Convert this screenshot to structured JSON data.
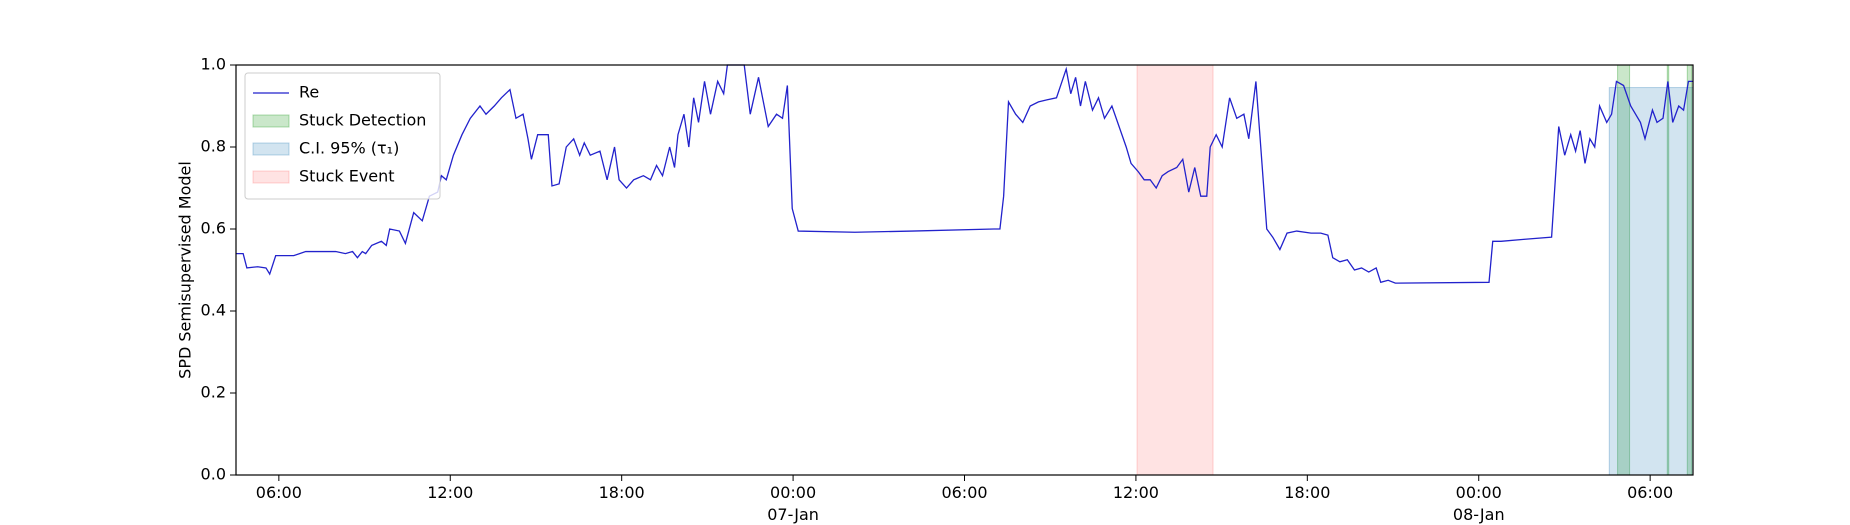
{
  "chart_data": {
    "type": "line",
    "ylabel": "SPD Semisupervised Model",
    "xlim": [
      4.5,
      55.5
    ],
    "xticks": [
      {
        "value": 6,
        "label": "06:00"
      },
      {
        "value": 12,
        "label": "12:00"
      },
      {
        "value": 18,
        "label": "18:00"
      },
      {
        "value": 24,
        "label": "00:00\n07-Jan\n1900"
      },
      {
        "value": 30,
        "label": "06:00"
      },
      {
        "value": 36,
        "label": "12:00"
      },
      {
        "value": 42,
        "label": "18:00"
      },
      {
        "value": 48,
        "label": "00:00\n08-Jan"
      },
      {
        "value": 54,
        "label": "06:00"
      }
    ],
    "ylim": [
      0,
      1
    ],
    "yticks": [
      {
        "value": 0,
        "label": "0.0"
      },
      0.2,
      0.4,
      0.6,
      0.8,
      {
        "value": 1,
        "label": "1.0"
      }
    ],
    "legend": "upper left",
    "x": [
      4.5,
      4.75,
      4.88,
      5.26,
      5.55,
      5.68,
      5.89,
      6.52,
      6.94,
      7.99,
      8.33,
      8.58,
      8.75,
      8.92,
      9.04,
      9.25,
      9.59,
      9.76,
      9.88,
      10.22,
      10.43,
      10.72,
      11.02,
      11.27,
      11.56,
      11.69,
      11.86,
      12.11,
      12.41,
      12.7,
      13.04,
      13.25,
      13.54,
      13.79,
      14.09,
      14.3,
      14.55,
      14.72,
      14.84,
      15.06,
      15.43,
      15.56,
      15.81,
      16.06,
      16.32,
      16.53,
      16.69,
      16.9,
      17.24,
      17.49,
      17.75,
      17.91,
      18.17,
      18.42,
      18.76,
      19.01,
      19.22,
      19.43,
      19.68,
      19.85,
      19.97,
      20.18,
      20.35,
      20.52,
      20.69,
      20.9,
      21.11,
      21.36,
      21.57,
      21.7,
      22.29,
      22.5,
      22.79,
      23.13,
      23.42,
      23.63,
      23.8,
      23.97,
      24.18,
      26.16,
      28.17,
      31.03,
      31.24,
      31.37,
      31.54,
      31.79,
      32.04,
      32.3,
      32.59,
      32.88,
      33.22,
      33.56,
      33.72,
      33.89,
      34.06,
      34.23,
      34.48,
      34.69,
      34.9,
      35.16,
      35.41,
      35.66,
      35.83,
      36.08,
      36.29,
      36.5,
      36.71,
      36.92,
      37.13,
      37.43,
      37.64,
      37.85,
      38.06,
      38.27,
      38.48,
      38.6,
      38.81,
      39.02,
      39.28,
      39.53,
      39.78,
      39.95,
      40.2,
      40.37,
      40.58,
      40.79,
      41.04,
      41.29,
      41.63,
      42.13,
      42.47,
      42.72,
      42.89,
      43.14,
      43.4,
      43.65,
      43.9,
      44.15,
      44.41,
      44.57,
      44.83,
      45.08,
      48.36,
      48.49,
      48.78,
      49.62,
      50.55,
      50.8,
      51.01,
      51.22,
      51.39,
      51.55,
      51.72,
      51.89,
      52.06,
      52.23,
      52.48,
      52.65,
      52.82,
      53.07,
      53.32,
      53.49,
      53.66,
      53.82,
      54.08,
      54.24,
      54.45,
      54.62,
      54.79,
      55.0,
      55.17,
      55.34,
      55.5
    ],
    "series": [
      {
        "name": "Re",
        "color": "#2222cc",
        "values": [
          0.54,
          0.54,
          0.505,
          0.508,
          0.505,
          0.49,
          0.535,
          0.535,
          0.545,
          0.545,
          0.54,
          0.545,
          0.53,
          0.545,
          0.54,
          0.56,
          0.57,
          0.56,
          0.6,
          0.595,
          0.565,
          0.64,
          0.62,
          0.68,
          0.69,
          0.73,
          0.72,
          0.78,
          0.83,
          0.87,
          0.9,
          0.88,
          0.9,
          0.92,
          0.94,
          0.87,
          0.88,
          0.82,
          0.77,
          0.83,
          0.83,
          0.705,
          0.71,
          0.8,
          0.82,
          0.78,
          0.81,
          0.78,
          0.79,
          0.72,
          0.8,
          0.72,
          0.7,
          0.72,
          0.73,
          0.72,
          0.755,
          0.73,
          0.8,
          0.75,
          0.83,
          0.88,
          0.8,
          0.92,
          0.86,
          0.96,
          0.88,
          0.96,
          0.93,
          1.0,
          1.0,
          0.88,
          0.97,
          0.85,
          0.88,
          0.87,
          0.95,
          0.65,
          0.595,
          0.592,
          0.595,
          0.6,
          0.6,
          0.68,
          0.91,
          0.88,
          0.86,
          0.9,
          0.91,
          0.915,
          0.92,
          0.99,
          0.93,
          0.97,
          0.9,
          0.96,
          0.89,
          0.92,
          0.87,
          0.9,
          0.85,
          0.8,
          0.76,
          0.74,
          0.72,
          0.72,
          0.7,
          0.73,
          0.74,
          0.75,
          0.77,
          0.69,
          0.75,
          0.68,
          0.68,
          0.8,
          0.83,
          0.8,
          0.92,
          0.87,
          0.88,
          0.82,
          0.96,
          0.8,
          0.6,
          0.58,
          0.55,
          0.59,
          0.595,
          0.59,
          0.59,
          0.585,
          0.53,
          0.52,
          0.525,
          0.5,
          0.505,
          0.495,
          0.505,
          0.47,
          0.475,
          0.468,
          0.47,
          0.57,
          0.57,
          0.575,
          0.58,
          0.85,
          0.78,
          0.83,
          0.79,
          0.84,
          0.76,
          0.82,
          0.8,
          0.9,
          0.86,
          0.88,
          0.96,
          0.95,
          0.9,
          0.88,
          0.86,
          0.82,
          0.89,
          0.86,
          0.87,
          0.96,
          0.86,
          0.9,
          0.89,
          0.96,
          0.96
        ]
      }
    ],
    "regions": [
      {
        "name": "Stuck Detection",
        "color": "#2ca02c",
        "alpha": 0.25,
        "spans": [
          [
            52.86,
            53.28
          ],
          [
            54.6,
            54.65
          ],
          [
            55.3,
            55.45
          ]
        ]
      },
      {
        "name": "C.I. 95% (τ₁)",
        "color": "#1f77b4",
        "alpha": 0.2,
        "spans": [
          [
            52.57,
            55.5
          ]
        ],
        "top": 0.945
      },
      {
        "name": "Stuck Event",
        "color": "#ff0000",
        "alpha": 0.11,
        "spans": [
          [
            36.04,
            38.7
          ]
        ]
      }
    ]
  }
}
